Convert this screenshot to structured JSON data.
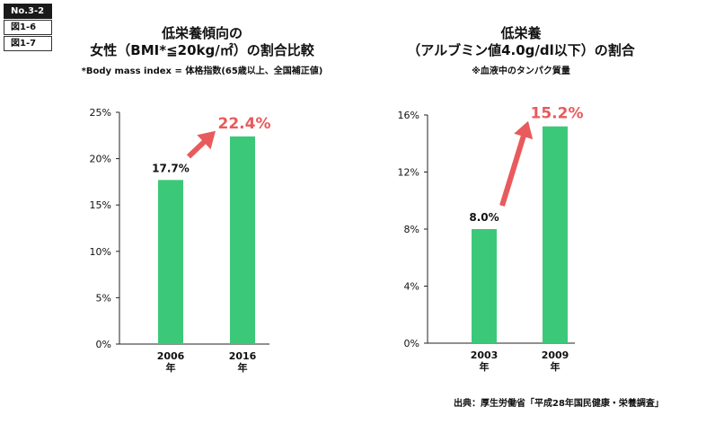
{
  "tags": [
    "No.3-2",
    "図1-6",
    "図1-7"
  ],
  "source": "出典：厚生労働省「平成28年国民健康・栄養調査」",
  "colors": {
    "bar": "#3cc879",
    "highlight": "#e85a5c",
    "axis": "#222222"
  },
  "chart_data": [
    {
      "type": "bar",
      "title_line1": "低栄養傾向の",
      "title_line2": "女性（BMI*≦20kg/㎡）の割合比較",
      "subtitle": "*Body mass index = 体格指数(65歳以上、全国補正値)",
      "categories": [
        "2006",
        "2016"
      ],
      "category_unit": "年",
      "values": [
        17.7,
        22.4
      ],
      "value_labels": [
        "17.7%",
        "22.4%"
      ],
      "yticks": [
        "0%",
        "5%",
        "10%",
        "15%",
        "20%",
        "25%"
      ],
      "ylim": [
        0,
        25
      ],
      "grid": false
    },
    {
      "type": "bar",
      "title_line1": "低栄養",
      "title_line2": "（アルブミン値4.0g/dl以下）の割合",
      "subtitle": "※血液中のタンパク質量",
      "categories": [
        "2003",
        "2009"
      ],
      "category_unit": "年",
      "values": [
        8.0,
        15.2
      ],
      "value_labels": [
        "8.0%",
        "15.2%"
      ],
      "yticks": [
        "0%",
        "4%",
        "8%",
        "12%",
        "16%"
      ],
      "ylim": [
        0,
        16
      ],
      "grid": false
    }
  ]
}
